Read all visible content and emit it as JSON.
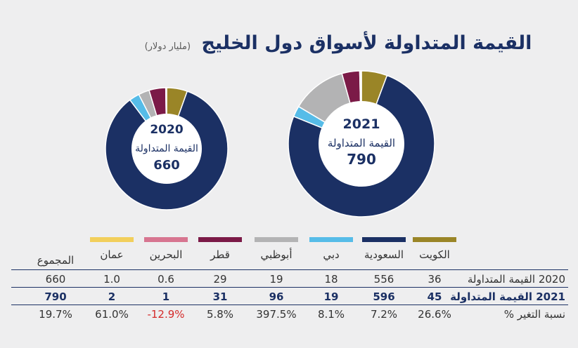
{
  "title": "القيمة المتداولة لأسواق دول الخليج",
  "subtitle": "(مليار دولار)",
  "colors": {
    "الكويت": "#9a8527",
    "السعودية": "#1b3064",
    "دبي": "#56bce8",
    "أبوظبي": "#b3b3b4",
    "قطر": "#7b1a47",
    "البحرين": "#d77590",
    "عمان": "#f2cf5b"
  },
  "legend": [
    "الكويت",
    "السعودية",
    "دبي",
    "أبوظبي",
    "قطر",
    "البحرين",
    "عمان"
  ],
  "table": {
    "total_header": "المجموع",
    "rows": [
      {
        "label": "2020 القيمة المتداولة",
        "values": [
          "36",
          "556",
          "18",
          "19",
          "29",
          "0.6",
          "1.0",
          "660"
        ]
      },
      {
        "label": "2021 القيمة المتداولة",
        "values": [
          "45",
          "596",
          "19",
          "96",
          "31",
          "1",
          "2",
          "790"
        ]
      },
      {
        "label": "نسبة التغير %",
        "values": [
          "26.6%",
          "7.2%",
          "8.1%",
          "397.5%",
          "5.8%",
          "-12.9%",
          "61.0%",
          "19.7%"
        ]
      }
    ]
  },
  "chart_data": [
    {
      "type": "pie",
      "year": "2020",
      "center_label": "القيمة المتداولة",
      "total": "660",
      "categories": [
        "الكويت",
        "السعودية",
        "دبي",
        "أبوظبي",
        "قطر",
        "البحرين",
        "عمان"
      ],
      "values": [
        36,
        556,
        18,
        19,
        29,
        0.6,
        1.0
      ]
    },
    {
      "type": "pie",
      "year": "2021",
      "center_label": "القيمة المتداولة",
      "total": "790",
      "categories": [
        "الكويت",
        "السعودية",
        "دبي",
        "أبوظبي",
        "قطر",
        "البحرين",
        "عمان"
      ],
      "values": [
        45,
        596,
        19,
        96,
        31,
        1,
        2
      ]
    }
  ]
}
